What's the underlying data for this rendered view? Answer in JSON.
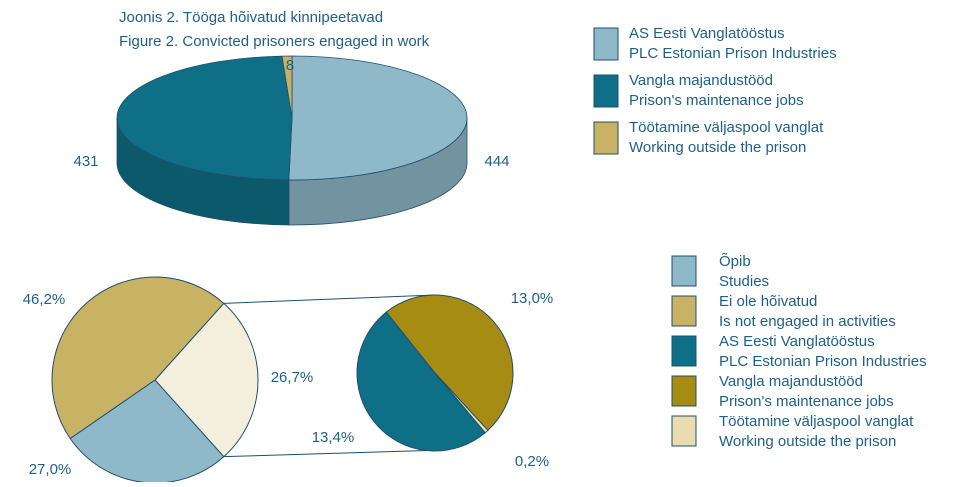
{
  "chart_data": [
    {
      "type": "pie3d",
      "title": [
        "Joonis 2. Tööga hõivatud kinnipeetavad",
        "Figure 2. Convicted prisoners engaged in work"
      ],
      "series": [
        {
          "name": [
            "AS Eesti Vanglatööstus",
            "PLC Estonian Prison Industries"
          ],
          "color": "#8fb8c8",
          "values": [
            444
          ]
        },
        {
          "name": [
            "Vangla majandustööd",
            "Prison's maintenance jobs"
          ],
          "color": "#0f6f87",
          "values": [
            431
          ]
        },
        {
          "name": [
            "Töötamine väljaspool vanglat",
            "Working outside the prison"
          ],
          "color": "#c8b264",
          "values": [
            8
          ]
        }
      ]
    },
    {
      "type": "pie-of-pie",
      "primary_slices": [
        {
          "name": [
            "Õpib",
            "Studies"
          ],
          "color": "#8fb8c8",
          "value": 27.0,
          "value_label": "27,0%"
        },
        {
          "name": [
            "Ei ole hõivatud",
            "Is not engaged in activities"
          ],
          "color": "#c8b264",
          "value": 46.2,
          "value_label": "46,2%"
        }
      ],
      "other": {
        "value": 26.7,
        "value_label": "26,7%",
        "color": "#f3efdc"
      },
      "secondary_slices": [
        {
          "name": [
            "AS Eesti Vanglatööstus",
            "PLC Estonian Prison Industries"
          ],
          "color": "#0f6f87",
          "value": 13.4,
          "value_label": "13,4%"
        },
        {
          "name": [
            "Vangla majandustööd",
            "Prison's maintenance jobs"
          ],
          "color": "#a68c12",
          "value": 13.0,
          "value_label": "13,0%"
        },
        {
          "name": [
            "Töötamine väljaspool vanglat",
            "Working outside the prison"
          ],
          "color": "#e8dcb0",
          "value": 0.2,
          "value_label": "0,2%"
        }
      ]
    }
  ]
}
